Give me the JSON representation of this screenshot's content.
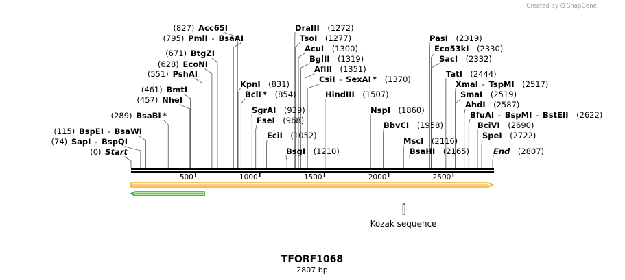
{
  "credit": {
    "prefix": "Created by",
    "brand": "SnapGene"
  },
  "map": {
    "title": "TFORF1068",
    "length_label": "2807 bp",
    "length": 2807,
    "ticks": [
      500,
      1000,
      1500,
      2000,
      2500
    ]
  },
  "sites": [
    {
      "name": "Start",
      "pos": 0,
      "label_pos": "(0)",
      "style": "italic"
    },
    {
      "name": "SapI",
      "alt": "BspQI",
      "pos": 74,
      "label_pos": "(74)"
    },
    {
      "name": "BspEI",
      "alt": "BsaWI",
      "pos": 115,
      "label_pos": "(115)"
    },
    {
      "name": "BsaBI",
      "pos": 289,
      "label_pos": "(289)",
      "star": "*"
    },
    {
      "name": "NheI",
      "pos": 457,
      "label_pos": "(457)"
    },
    {
      "name": "BmtI",
      "pos": 461,
      "label_pos": "(461)"
    },
    {
      "name": "PshAI",
      "pos": 551,
      "label_pos": "(551)"
    },
    {
      "name": "EcoNI",
      "pos": 628,
      "label_pos": "(628)"
    },
    {
      "name": "BtgZI",
      "pos": 671,
      "label_pos": "(671)"
    },
    {
      "name": "PmlI",
      "alt": "BsaAI",
      "pos": 795,
      "label_pos": "(795)"
    },
    {
      "name": "Acc65I",
      "pos": 827,
      "label_pos": "(827)"
    },
    {
      "name": "KpnI",
      "pos": 831,
      "label_pos": "(831)"
    },
    {
      "name": "BclI",
      "pos": 854,
      "label_pos": "(854)",
      "star": "*"
    },
    {
      "name": "SgrAI",
      "pos": 939,
      "label_pos": "(939)"
    },
    {
      "name": "FseI",
      "pos": 968,
      "label_pos": "(968)"
    },
    {
      "name": "EciI",
      "pos": 1052,
      "label_pos": "(1052)"
    },
    {
      "name": "BsgI",
      "pos": 1210,
      "label_pos": "(1210)"
    },
    {
      "name": "DraIII",
      "pos": 1272,
      "label_pos": "(1272)"
    },
    {
      "name": "TsoI",
      "pos": 1277,
      "label_pos": "(1277)"
    },
    {
      "name": "AcuI",
      "pos": 1300,
      "label_pos": "(1300)"
    },
    {
      "name": "BglII",
      "pos": 1319,
      "label_pos": "(1319)"
    },
    {
      "name": "AflII",
      "pos": 1351,
      "label_pos": "(1351)"
    },
    {
      "name": "CsiI",
      "alt": "SexAI",
      "pos": 1370,
      "label_pos": "(1370)",
      "alt_star": "*"
    },
    {
      "name": "HindIII",
      "pos": 1507,
      "label_pos": "(1507)"
    },
    {
      "name": "NspI",
      "pos": 1860,
      "label_pos": "(1860)"
    },
    {
      "name": "BbvCI",
      "pos": 1958,
      "label_pos": "(1958)"
    },
    {
      "name": "MscI",
      "pos": 2116,
      "label_pos": "(2116)"
    },
    {
      "name": "BsaHI",
      "pos": 2165,
      "label_pos": "(2165)"
    },
    {
      "name": "PasI",
      "pos": 2319,
      "label_pos": "(2319)"
    },
    {
      "name": "Eco53kI",
      "pos": 2330,
      "label_pos": "(2330)"
    },
    {
      "name": "SacI",
      "pos": 2332,
      "label_pos": "(2332)"
    },
    {
      "name": "TatI",
      "pos": 2444,
      "label_pos": "(2444)"
    },
    {
      "name": "XmaI",
      "alt": "TspMI",
      "pos": 2517,
      "label_pos": "(2517)"
    },
    {
      "name": "SmaI",
      "pos": 2519,
      "label_pos": "(2519)"
    },
    {
      "name": "AhdI",
      "pos": 2587,
      "label_pos": "(2587)"
    },
    {
      "name": "BfuAI",
      "alt": "BspMI",
      "alt2": "BstEII",
      "pos": 2622,
      "label_pos": "(2622)"
    },
    {
      "name": "BciVI",
      "pos": 2690,
      "label_pos": "(2690)"
    },
    {
      "name": "SpeI",
      "pos": 2722,
      "label_pos": "(2722)"
    },
    {
      "name": "End",
      "pos": 2807,
      "label_pos": "(2807)",
      "style": "italic"
    }
  ],
  "features": [
    {
      "name": "orf-forward",
      "start": 1,
      "end": 2807,
      "direction": "forward",
      "color": "#f0a93b",
      "fill": "#fff3c4"
    },
    {
      "name": "orf-reverse",
      "start": 1,
      "end": 570,
      "direction": "reverse",
      "color": "#3a9a3a",
      "fill": "#b7e6a6"
    }
  ],
  "kozak": {
    "label": "Kozak sequence",
    "pos": 2116,
    "end": 2128
  }
}
